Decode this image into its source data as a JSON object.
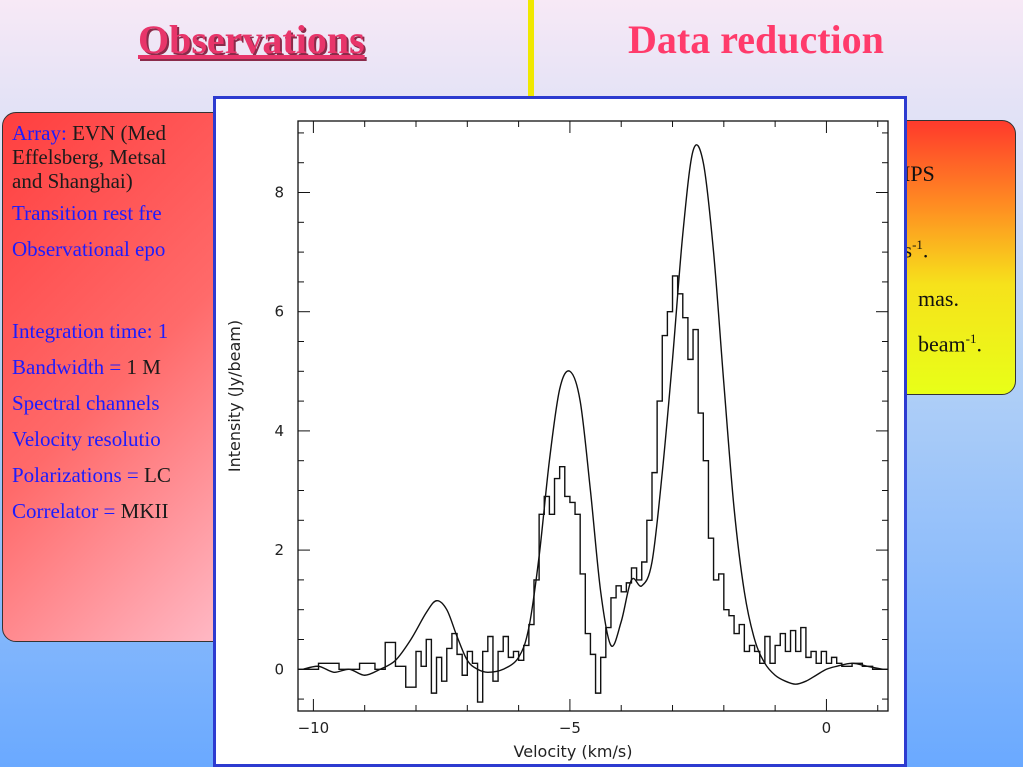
{
  "titles": {
    "left": "Observations",
    "right": "Data reduction"
  },
  "left_box": {
    "array_label": "Array:",
    "array_text_line1": " EVN (Med",
    "array_text_line2": "Effelsberg, Metsal",
    "array_text_line3": "and Shanghai)",
    "transition": "Transition rest fre",
    "epoch": "Observational epo",
    "integration": "Integration time: 1",
    "bandwidth_label": "Bandwidth = ",
    "bandwidth_val": "1 M",
    "channels": "Spectral channels",
    "velocity_res": "Velocity resolutio",
    "polarizations_label": "Polarizations = ",
    "polarizations_val": "LC",
    "correlator_label": "Correlator = ",
    "correlator_val": "MKII"
  },
  "right_box": {
    "line1": "IPS",
    "line2": "n s",
    "line2_sup": "-1",
    "line2_end": ".",
    "line3": "mas.",
    "line4": "beam",
    "line4_sup": "-1",
    "line4_end": "."
  },
  "chart_data": {
    "type": "line",
    "xlabel": "Velocity (km/s)",
    "ylabel": "Intensity (Jy/beam)",
    "xlim": [
      -10.3,
      1.2
    ],
    "ylim": [
      -0.7,
      9.2
    ],
    "xticks": [
      -10,
      -5,
      0
    ],
    "xtick_labels": [
      "−10",
      "−5",
      "0"
    ],
    "yticks": [
      0,
      2,
      4,
      6,
      8
    ],
    "ytick_labels": [
      "0",
      "2",
      "4",
      "6",
      "8"
    ],
    "series": [
      {
        "style": "smooth",
        "x": [
          -10.2,
          -9.9,
          -9.6,
          -9.3,
          -9.0,
          -8.7,
          -8.4,
          -8.1,
          -7.8,
          -7.6,
          -7.4,
          -7.2,
          -7.0,
          -6.8,
          -6.6,
          -6.3,
          -6.0,
          -5.8,
          -5.6,
          -5.4,
          -5.2,
          -5.0,
          -4.8,
          -4.6,
          -4.4,
          -4.2,
          -4.0,
          -3.8,
          -3.6,
          -3.4,
          -3.2,
          -3.0,
          -2.8,
          -2.6,
          -2.4,
          -2.2,
          -2.0,
          -1.8,
          -1.6,
          -1.4,
          -1.2,
          -1.0,
          -0.8,
          -0.6,
          -0.4,
          -0.2,
          0.0,
          0.2,
          0.5,
          0.8,
          1.1
        ],
        "y": [
          0.0,
          0.05,
          -0.05,
          0.0,
          -0.1,
          0.0,
          0.15,
          0.5,
          0.95,
          1.15,
          1.0,
          0.55,
          0.15,
          0.0,
          -0.05,
          0.0,
          0.2,
          0.7,
          1.9,
          3.5,
          4.7,
          5.0,
          4.5,
          3.0,
          1.3,
          0.4,
          0.8,
          1.5,
          1.4,
          1.8,
          3.3,
          5.2,
          7.3,
          8.7,
          8.5,
          7.0,
          4.8,
          2.7,
          1.3,
          0.5,
          0.1,
          -0.1,
          -0.2,
          -0.25,
          -0.2,
          -0.1,
          0.0,
          0.05,
          0.1,
          0.05,
          0.0
        ]
      },
      {
        "style": "step",
        "x": [
          -10.3,
          -9.9,
          -9.5,
          -9.1,
          -8.8,
          -8.6,
          -8.4,
          -8.2,
          -8.0,
          -7.9,
          -7.8,
          -7.7,
          -7.6,
          -7.5,
          -7.4,
          -7.3,
          -7.2,
          -7.1,
          -7.0,
          -6.9,
          -6.8,
          -6.7,
          -6.6,
          -6.5,
          -6.4,
          -6.3,
          -6.2,
          -6.1,
          -6.0,
          -5.9,
          -5.8,
          -5.7,
          -5.6,
          -5.5,
          -5.4,
          -5.3,
          -5.2,
          -5.1,
          -5.0,
          -4.9,
          -4.8,
          -4.7,
          -4.6,
          -4.5,
          -4.4,
          -4.3,
          -4.2,
          -4.1,
          -4.0,
          -3.9,
          -3.8,
          -3.7,
          -3.6,
          -3.5,
          -3.4,
          -3.3,
          -3.2,
          -3.1,
          -3.0,
          -2.9,
          -2.8,
          -2.7,
          -2.6,
          -2.5,
          -2.4,
          -2.3,
          -2.2,
          -2.1,
          -2.0,
          -1.9,
          -1.8,
          -1.7,
          -1.6,
          -1.5,
          -1.4,
          -1.3,
          -1.2,
          -1.1,
          -1.0,
          -0.9,
          -0.8,
          -0.7,
          -0.6,
          -0.5,
          -0.4,
          -0.3,
          -0.2,
          -0.1,
          0.0,
          0.1,
          0.2,
          0.3,
          0.5,
          0.7,
          0.9,
          1.1
        ],
        "y": [
          0.0,
          0.1,
          0.0,
          0.1,
          0.0,
          0.45,
          0.05,
          -0.3,
          0.3,
          0.05,
          0.5,
          -0.4,
          0.2,
          -0.2,
          0.35,
          0.6,
          0.25,
          -0.1,
          0.3,
          0.1,
          -0.55,
          0.3,
          0.55,
          -0.2,
          0.3,
          0.55,
          0.2,
          0.3,
          0.15,
          0.4,
          0.75,
          1.5,
          2.6,
          2.9,
          2.6,
          3.2,
          3.4,
          2.9,
          2.8,
          2.6,
          1.6,
          0.6,
          0.25,
          -0.4,
          0.2,
          0.7,
          1.2,
          1.4,
          1.3,
          1.45,
          1.7,
          1.5,
          1.8,
          2.5,
          3.3,
          4.5,
          5.6,
          6.0,
          6.6,
          6.3,
          5.9,
          5.2,
          5.7,
          4.3,
          3.5,
          2.2,
          1.5,
          1.6,
          1.0,
          0.9,
          0.6,
          0.75,
          0.3,
          0.4,
          0.3,
          0.1,
          0.55,
          0.1,
          0.4,
          0.6,
          0.3,
          0.65,
          0.3,
          0.7,
          0.2,
          0.3,
          0.1,
          0.3,
          0.1,
          0.2,
          0.1,
          0.05,
          0.1,
          0.05,
          0.0,
          0.0
        ]
      }
    ]
  }
}
